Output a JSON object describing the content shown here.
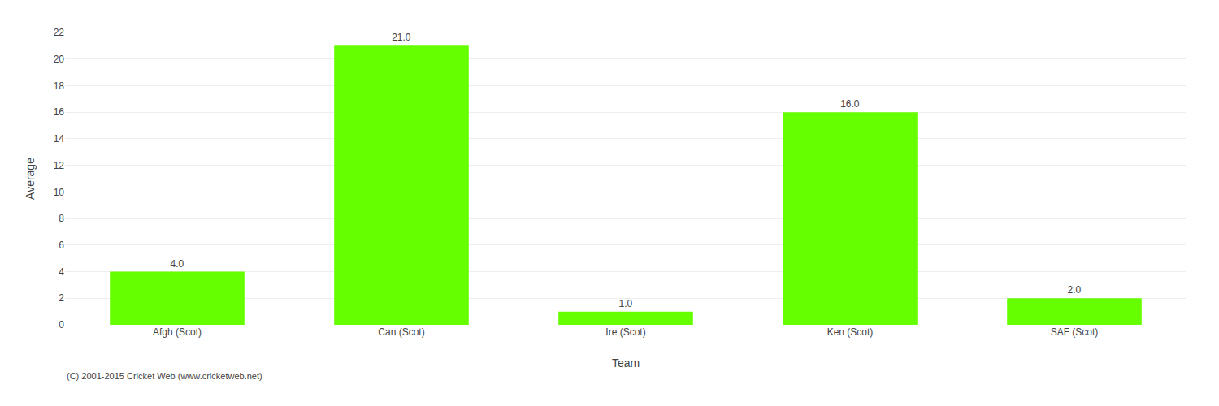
{
  "chart_data": {
    "type": "bar",
    "categories": [
      "Afgh (Scot)",
      "Can (Scot)",
      "Ire (Scot)",
      "Ken (Scot)",
      "SAF (Scot)"
    ],
    "values": [
      4.0,
      21.0,
      1.0,
      16.0,
      2.0
    ],
    "value_labels": [
      "4.0",
      "21.0",
      "1.0",
      "16.0",
      "2.0"
    ],
    "data_labels": true,
    "color": "#66ff00",
    "xlabel": "Team",
    "ylabel": "Average",
    "ylim": [
      0,
      22
    ],
    "yticks": [
      0,
      2,
      4,
      6,
      8,
      10,
      12,
      14,
      16,
      18,
      20,
      22
    ],
    "grid": true,
    "annotations": [
      "(C) 2001-2015 Cricket Web (www.cricketweb.net)"
    ]
  }
}
